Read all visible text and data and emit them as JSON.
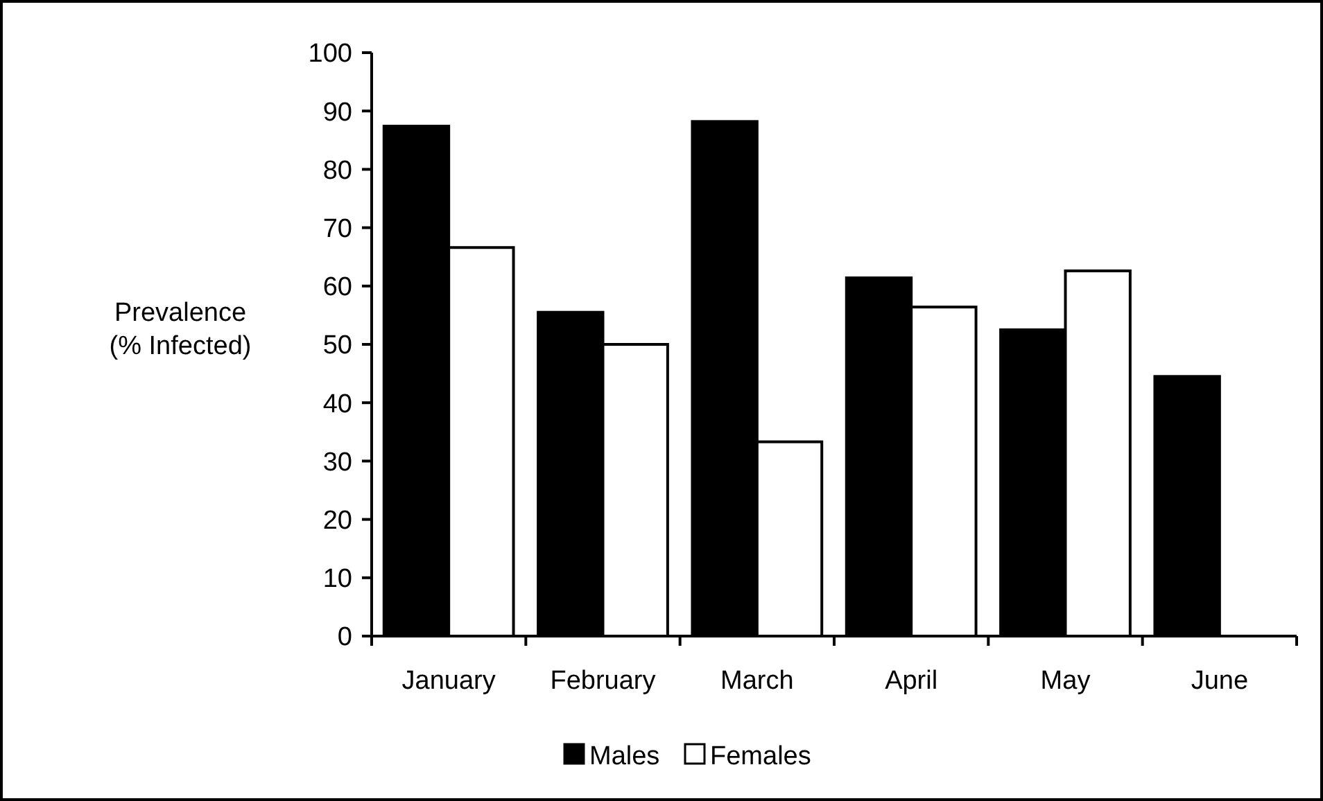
{
  "chart_data": {
    "type": "bar",
    "ylabel": "Prevalence\n(% Infected)",
    "categories": [
      "January",
      "February",
      "March",
      "April",
      "May",
      "June"
    ],
    "series": [
      {
        "name": "Males",
        "color": "#000000",
        "values": [
          87.4,
          55.5,
          88.2,
          61.4,
          52.5,
          44.5
        ]
      },
      {
        "name": "Females",
        "color": "#ffffff",
        "values": [
          66.6,
          50,
          33.3,
          56.4,
          62.6,
          null
        ]
      }
    ],
    "ylim": [
      0,
      100
    ],
    "yticks": [
      0,
      10,
      20,
      30,
      40,
      50,
      60,
      70,
      80,
      90,
      100
    ],
    "grid": false,
    "legend": "bottom"
  }
}
